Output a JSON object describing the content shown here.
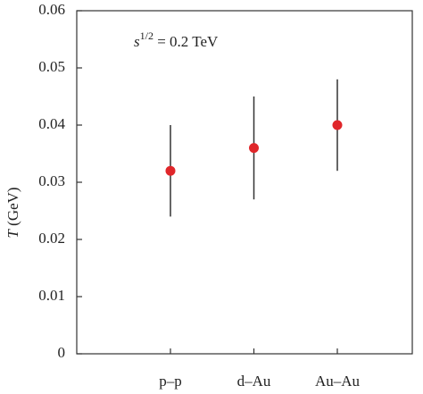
{
  "chart_data": {
    "type": "errorbar",
    "annotation": {
      "base": "s",
      "sup": "1/2",
      "rest": " = 0.2 TeV"
    },
    "ylabel": {
      "symbol": "T",
      "unit": " (GeV)"
    },
    "categories": [
      "p–p",
      "d–Au",
      "Au–Au"
    ],
    "values": [
      0.032,
      0.036,
      0.04
    ],
    "errors": [
      0.008,
      0.009,
      0.008
    ],
    "color": "#e0262a",
    "error_color": "#333333",
    "ylim": [
      0,
      0.06
    ],
    "yticks": [
      0,
      0.01,
      0.02,
      0.03,
      0.04,
      0.05,
      0.06
    ]
  }
}
